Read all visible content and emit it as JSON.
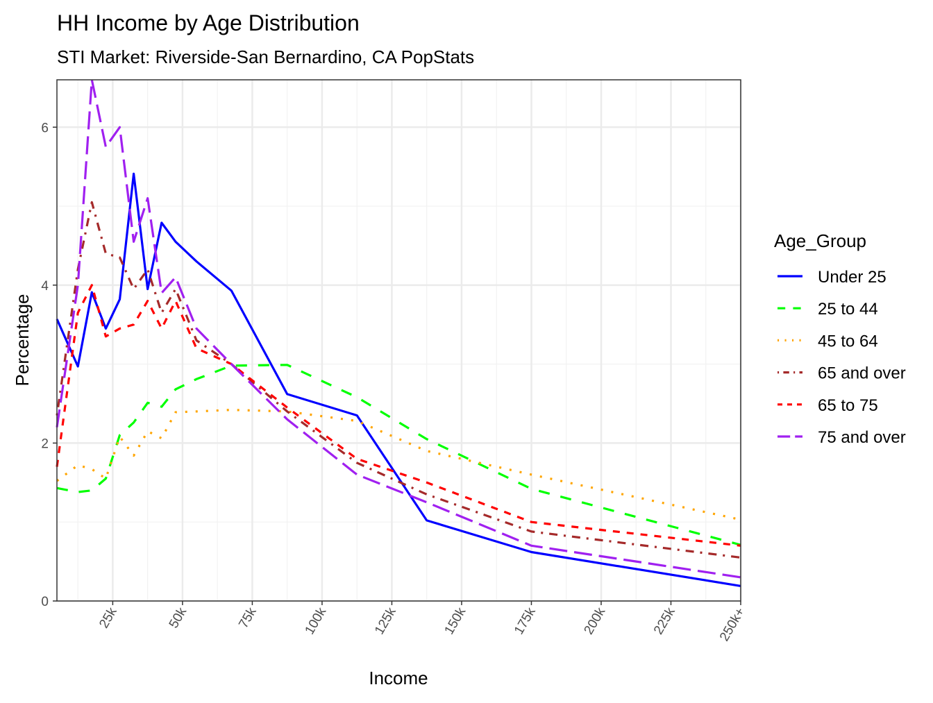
{
  "chart_data": {
    "type": "line",
    "title": "HH Income by Age Distribution",
    "subtitle": "STI Market: Riverside-San Bernardino, CA PopStats",
    "xlabel": "Income",
    "ylabel": "Percentage",
    "xlim": [
      5,
      250
    ],
    "ylim": [
      0,
      6.6
    ],
    "x_ticks": [
      25,
      50,
      75,
      100,
      125,
      150,
      175,
      200,
      225,
      250
    ],
    "x_tick_labels": [
      "25k",
      "50k",
      "75k",
      "100k",
      "125k",
      "150k",
      "175k",
      "200k",
      "225k",
      "250k+"
    ],
    "y_ticks": [
      0,
      2,
      4,
      6
    ],
    "y_tick_labels": [
      "0",
      "2",
      "4",
      "6"
    ],
    "grid": true,
    "legend_title": "Age_Group",
    "legend_position": "right",
    "x": [
      5,
      12.5,
      17.5,
      22.5,
      27.5,
      32.5,
      37.5,
      42.5,
      47.5,
      55,
      67.5,
      87.5,
      112.5,
      137.5,
      175,
      250
    ],
    "series": [
      {
        "name": "Under 25",
        "color": "#0000ff",
        "dash": "solid",
        "values": [
          3.57,
          2.97,
          3.91,
          3.45,
          3.82,
          5.41,
          3.95,
          4.79,
          4.55,
          4.3,
          3.93,
          2.62,
          2.35,
          1.02,
          0.62,
          0.19
        ]
      },
      {
        "name": "25 to 44",
        "color": "#00ff00",
        "dash": "dashed",
        "values": [
          1.43,
          1.38,
          1.4,
          1.55,
          2.1,
          2.26,
          2.51,
          2.46,
          2.68,
          2.81,
          2.98,
          2.99,
          2.58,
          2.05,
          1.42,
          0.71
        ]
      },
      {
        "name": "45 to 64",
        "color": "#ffa500",
        "dash": "dotted",
        "values": [
          1.52,
          1.72,
          1.67,
          1.55,
          2.08,
          1.84,
          2.15,
          2.06,
          2.39,
          2.4,
          2.42,
          2.4,
          2.28,
          1.9,
          1.6,
          1.03
        ]
      },
      {
        "name": "65 and over",
        "color": "#a52a2a",
        "dash": "dotdash",
        "values": [
          2.35,
          4.2,
          5.05,
          4.4,
          4.35,
          3.95,
          4.2,
          3.65,
          3.95,
          3.3,
          3.0,
          2.4,
          1.75,
          1.35,
          0.88,
          0.55
        ]
      },
      {
        "name": "65 to 75",
        "color": "#ff0000",
        "dash": "shortdash",
        "values": [
          1.7,
          3.65,
          4.0,
          3.35,
          3.45,
          3.5,
          3.8,
          3.45,
          3.8,
          3.2,
          3.0,
          2.45,
          1.8,
          1.5,
          1.0,
          0.7
        ]
      },
      {
        "name": "75 and over",
        "color": "#a020f0",
        "dash": "longdash",
        "values": [
          2.2,
          4.0,
          6.6,
          5.75,
          6.0,
          4.55,
          5.1,
          3.9,
          4.1,
          3.45,
          3.0,
          2.3,
          1.6,
          1.25,
          0.7,
          0.3
        ]
      }
    ]
  }
}
